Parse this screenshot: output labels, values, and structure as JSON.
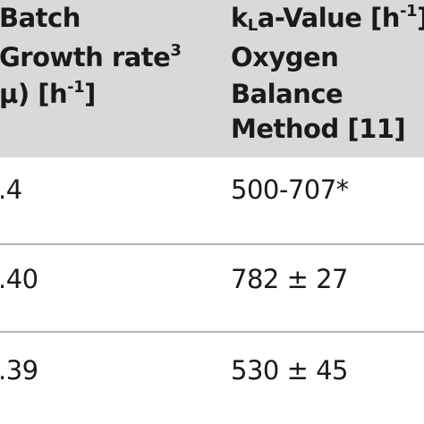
{
  "header": {
    "col1_line1": "Batch",
    "col1_line2_text": "Growth rate",
    "col1_line2_sup": "3",
    "col1_line3": "µ) [h",
    "col1_line3_sup": "-1",
    "col1_line3_end": "]",
    "col2_line1_k": "k",
    "col2_line1_sub": "L",
    "col2_line1_rest": "a-Value [h",
    "col2_line1_sup": "-1",
    "col2_line1_end": "]",
    "col2_line2": "Oxygen",
    "col2_line3": "Balance",
    "col2_line4": "Method [11]"
  },
  "rows": [
    {
      "growth_rate": ".4",
      "kla_value": "500-707*"
    },
    {
      "growth_rate": ".40",
      "kla_value": "782 ± 27"
    },
    {
      "growth_rate": ".39",
      "kla_value": "530 ± 45"
    }
  ]
}
